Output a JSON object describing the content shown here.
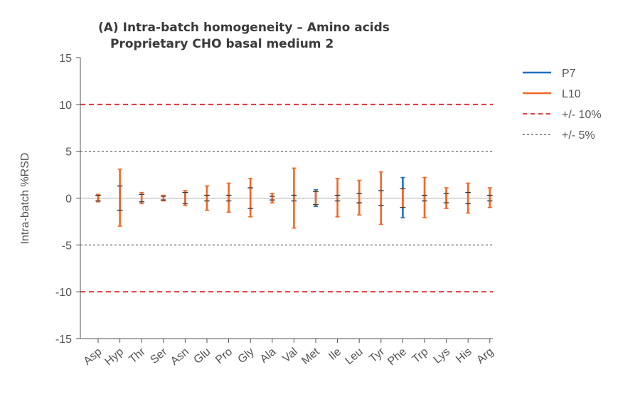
{
  "chart_data": {
    "type": "errorbar",
    "title": "(A) Intra-batch homogeneity – Amino acids",
    "subtitle": "Proprietary CHO basal medium 2",
    "ylabel": "Intra-batch %RSD",
    "xlabel": "",
    "ylim": [
      -15,
      15
    ],
    "yticks": [
      15,
      10,
      5,
      0,
      -5,
      -10,
      -15
    ],
    "categories": [
      "Asp",
      "Hyp",
      "Thr",
      "Ser",
      "Asn",
      "Glu",
      "Pro",
      "Gly",
      "Ala",
      "Val",
      "Met",
      "Ile",
      "Leu",
      "Tyr",
      "Phe",
      "Trp",
      "Lys",
      "His",
      "Arg"
    ],
    "series": [
      {
        "name": "P7",
        "color": "#1f6fc0",
        "ranges": [
          [
            -0.3,
            0.3
          ],
          [
            -1.3,
            1.3
          ],
          [
            -0.4,
            0.4
          ],
          [
            -0.2,
            0.2
          ],
          [
            -0.6,
            0.6
          ],
          [
            -0.3,
            0.3
          ],
          [
            -0.3,
            0.3
          ],
          [
            -1.1,
            1.1
          ],
          [
            -0.2,
            0.2
          ],
          [
            -0.3,
            0.3
          ],
          [
            -0.9,
            0.9
          ],
          [
            -0.3,
            0.3
          ],
          [
            -0.5,
            0.5
          ],
          [
            -0.8,
            0.8
          ],
          [
            -2.1,
            2.2
          ],
          [
            -0.3,
            0.3
          ],
          [
            -0.5,
            0.5
          ],
          [
            -0.6,
            0.6
          ],
          [
            -0.3,
            0.3
          ]
        ]
      },
      {
        "name": "L10",
        "color": "#f26722",
        "ranges": [
          [
            -0.4,
            0.4
          ],
          [
            -3.0,
            3.1
          ],
          [
            -0.6,
            0.6
          ],
          [
            -0.3,
            0.3
          ],
          [
            -0.8,
            0.8
          ],
          [
            -1.3,
            1.3
          ],
          [
            -1.5,
            1.6
          ],
          [
            -2.0,
            2.1
          ],
          [
            -0.5,
            0.5
          ],
          [
            -3.2,
            3.2
          ],
          [
            -0.7,
            0.7
          ],
          [
            -2.0,
            2.1
          ],
          [
            -1.8,
            1.9
          ],
          [
            -2.8,
            2.8
          ],
          [
            -1.0,
            1.0
          ],
          [
            -2.1,
            2.2
          ],
          [
            -1.1,
            1.1
          ],
          [
            -1.6,
            1.6
          ],
          [
            -1.0,
            1.1
          ]
        ]
      }
    ],
    "reference_lines": [
      {
        "name": "+/- 10%",
        "values": [
          10,
          -10
        ],
        "color": "#e0262b",
        "style": "dashed"
      },
      {
        "name": "+/- 5%",
        "values": [
          5,
          -5
        ],
        "color": "#555555",
        "style": "dotted"
      },
      {
        "name": "",
        "values": [
          0
        ],
        "color": "#b0b0b0",
        "style": "solid"
      }
    ],
    "legend": {
      "placement": "top-right",
      "entries": [
        {
          "label": "P7",
          "color": "#1f6fc0",
          "style": "solid"
        },
        {
          "label": "L10",
          "color": "#f26722",
          "style": "solid"
        },
        {
          "label": "+/- 10%",
          "color": "#e0262b",
          "style": "dashed"
        },
        {
          "label": "+/- 5%",
          "color": "#555555",
          "style": "dotted"
        }
      ]
    },
    "grid": false
  }
}
